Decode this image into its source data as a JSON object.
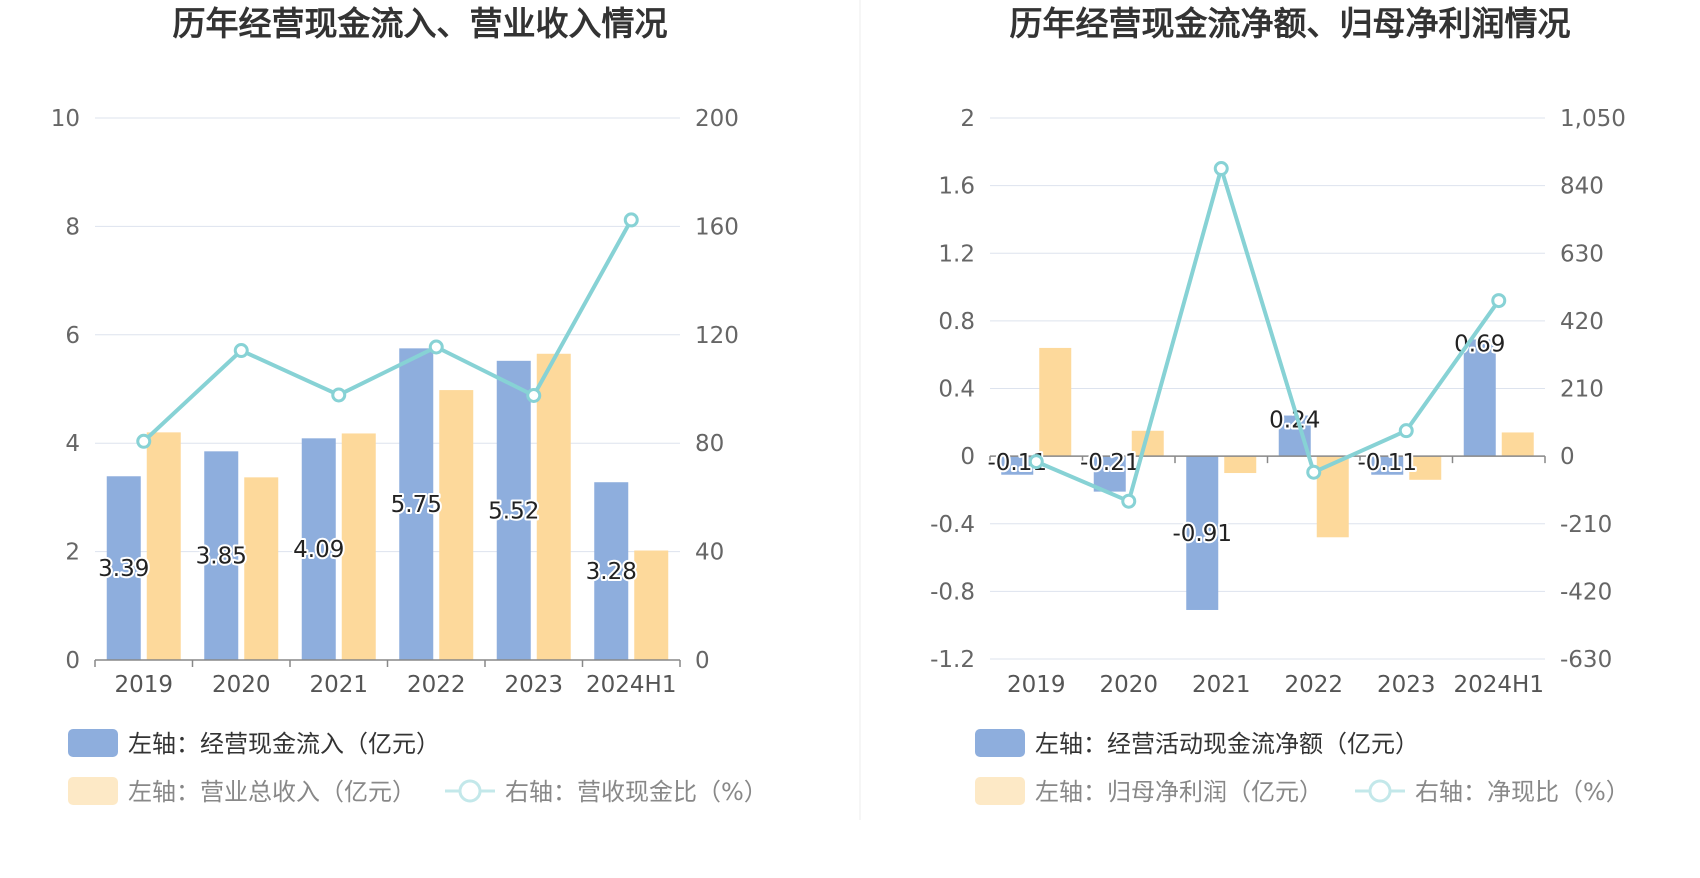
{
  "colors": {
    "bar_primary": "#8eaedd",
    "bar_secondary": "#fdd99b",
    "line": "#87d2d5",
    "grid": "#dde3ee",
    "axis": "#888888",
    "divider": "#eeeeee"
  },
  "chart_data": [
    {
      "type": "bar+line",
      "title": "历年经营现金流入、营业收入情况",
      "categories": [
        "2019",
        "2020",
        "2021",
        "2022",
        "2023",
        "2024H1"
      ],
      "y_left": {
        "min": 0,
        "max": 10,
        "ticks": [
          "0",
          "2",
          "4",
          "6",
          "8",
          "10"
        ],
        "tick_values": [
          0,
          2,
          4,
          6,
          8,
          10
        ]
      },
      "y_right": {
        "min": 0,
        "max": 200,
        "ticks": [
          "0",
          "40",
          "80",
          "120",
          "160",
          "200"
        ],
        "tick_values": [
          0,
          40,
          80,
          120,
          160,
          200
        ]
      },
      "series": [
        {
          "name": "左轴：经营现金流入（亿元）",
          "type": "bar",
          "axis": "left",
          "values": [
            3.39,
            3.85,
            4.09,
            5.75,
            5.52,
            3.28
          ],
          "labels": [
            "3.39",
            "3.85",
            "4.09",
            "5.75",
            "5.52",
            "3.28"
          ]
        },
        {
          "name": "左轴：营业总收入（亿元）",
          "type": "bar",
          "axis": "left",
          "values": [
            4.2,
            3.37,
            4.18,
            4.98,
            5.65,
            2.02
          ]
        },
        {
          "name": "右轴：营收现金比（%）",
          "type": "line",
          "axis": "right",
          "values": [
            80.7,
            114.2,
            97.8,
            115.5,
            97.6,
            162.4
          ]
        }
      ]
    },
    {
      "type": "bar+line",
      "title": "历年经营现金流净额、归母净利润情况",
      "categories": [
        "2019",
        "2020",
        "2021",
        "2022",
        "2023",
        "2024H1"
      ],
      "y_left": {
        "min": -1.2,
        "max": 2,
        "ticks": [
          "-1.2",
          "-0.8",
          "-0.4",
          "0",
          "0.4",
          "0.8",
          "1.2",
          "1.6",
          "2"
        ],
        "tick_values": [
          -1.2,
          -0.8,
          -0.4,
          0,
          0.4,
          0.8,
          1.2,
          1.6,
          2
        ]
      },
      "y_right": {
        "min": -630,
        "max": 1050,
        "ticks": [
          "-630",
          "-420",
          "-210",
          "0",
          "210",
          "420",
          "630",
          "840",
          "1,050"
        ],
        "tick_values": [
          -630,
          -420,
          -210,
          0,
          210,
          420,
          630,
          840,
          1050
        ]
      },
      "series": [
        {
          "name": "左轴：经营活动现金流净额（亿元）",
          "type": "bar",
          "axis": "left",
          "values": [
            -0.11,
            -0.21,
            -0.91,
            0.24,
            -0.11,
            0.69
          ],
          "labels": [
            "-0.11",
            "-0.21",
            "-0.91",
            "0.24",
            "-0.11",
            "0.69"
          ]
        },
        {
          "name": "左轴：归母净利润（亿元）",
          "type": "bar",
          "axis": "left",
          "values": [
            0.64,
            0.15,
            -0.1,
            -0.48,
            -0.14,
            0.14
          ]
        },
        {
          "name": "右轴：净现比（%）",
          "type": "line",
          "axis": "right",
          "values": [
            -17,
            -140,
            893,
            -50,
            79,
            483
          ]
        }
      ]
    }
  ]
}
